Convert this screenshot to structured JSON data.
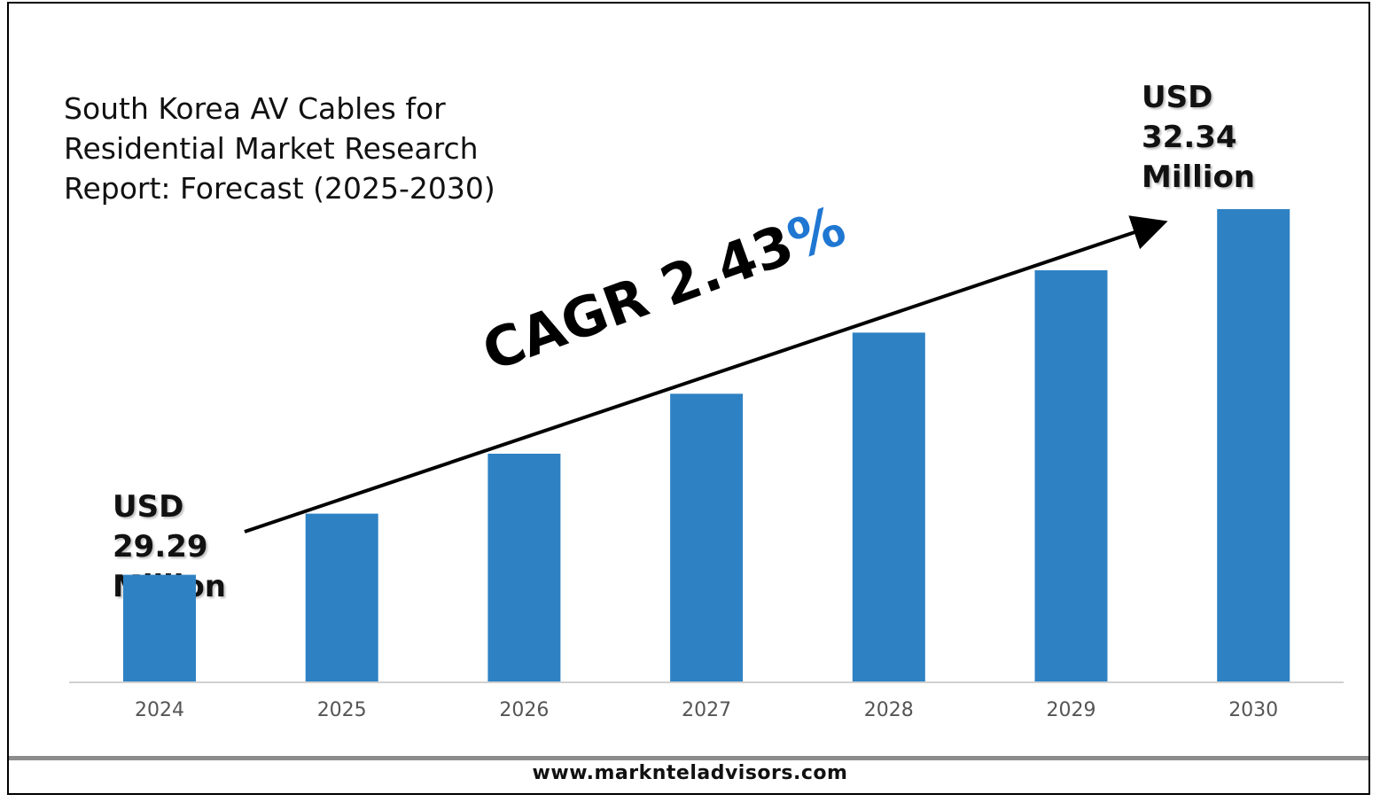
{
  "title": "South Korea AV Cables for Residential Market Research Report: Forecast (2025-2030)",
  "start_label": {
    "line1": "USD",
    "line2": "29.29",
    "line3": "Million"
  },
  "end_label": {
    "line1": "USD",
    "line2": "32.34",
    "line3": "Million"
  },
  "cagr": {
    "text": "CAGR 2.43",
    "symbol": "%"
  },
  "footer": "www.marknteladvisors.com",
  "colors": {
    "bar": "#2e82c4",
    "accent": "#1f77d2",
    "axis": "#d0d0d0"
  },
  "chart_data": {
    "type": "bar",
    "categories": [
      "2024",
      "2025",
      "2026",
      "2027",
      "2028",
      "2029",
      "2030"
    ],
    "values": [
      29.29,
      29.8,
      30.3,
      30.8,
      31.31,
      31.83,
      32.34
    ],
    "title": "South Korea AV Cables for Residential Market Research Report: Forecast (2025-2030)",
    "xlabel": "",
    "ylabel": "",
    "ylim": [
      28.4,
      32.34
    ],
    "grid": false,
    "legend": "none"
  }
}
